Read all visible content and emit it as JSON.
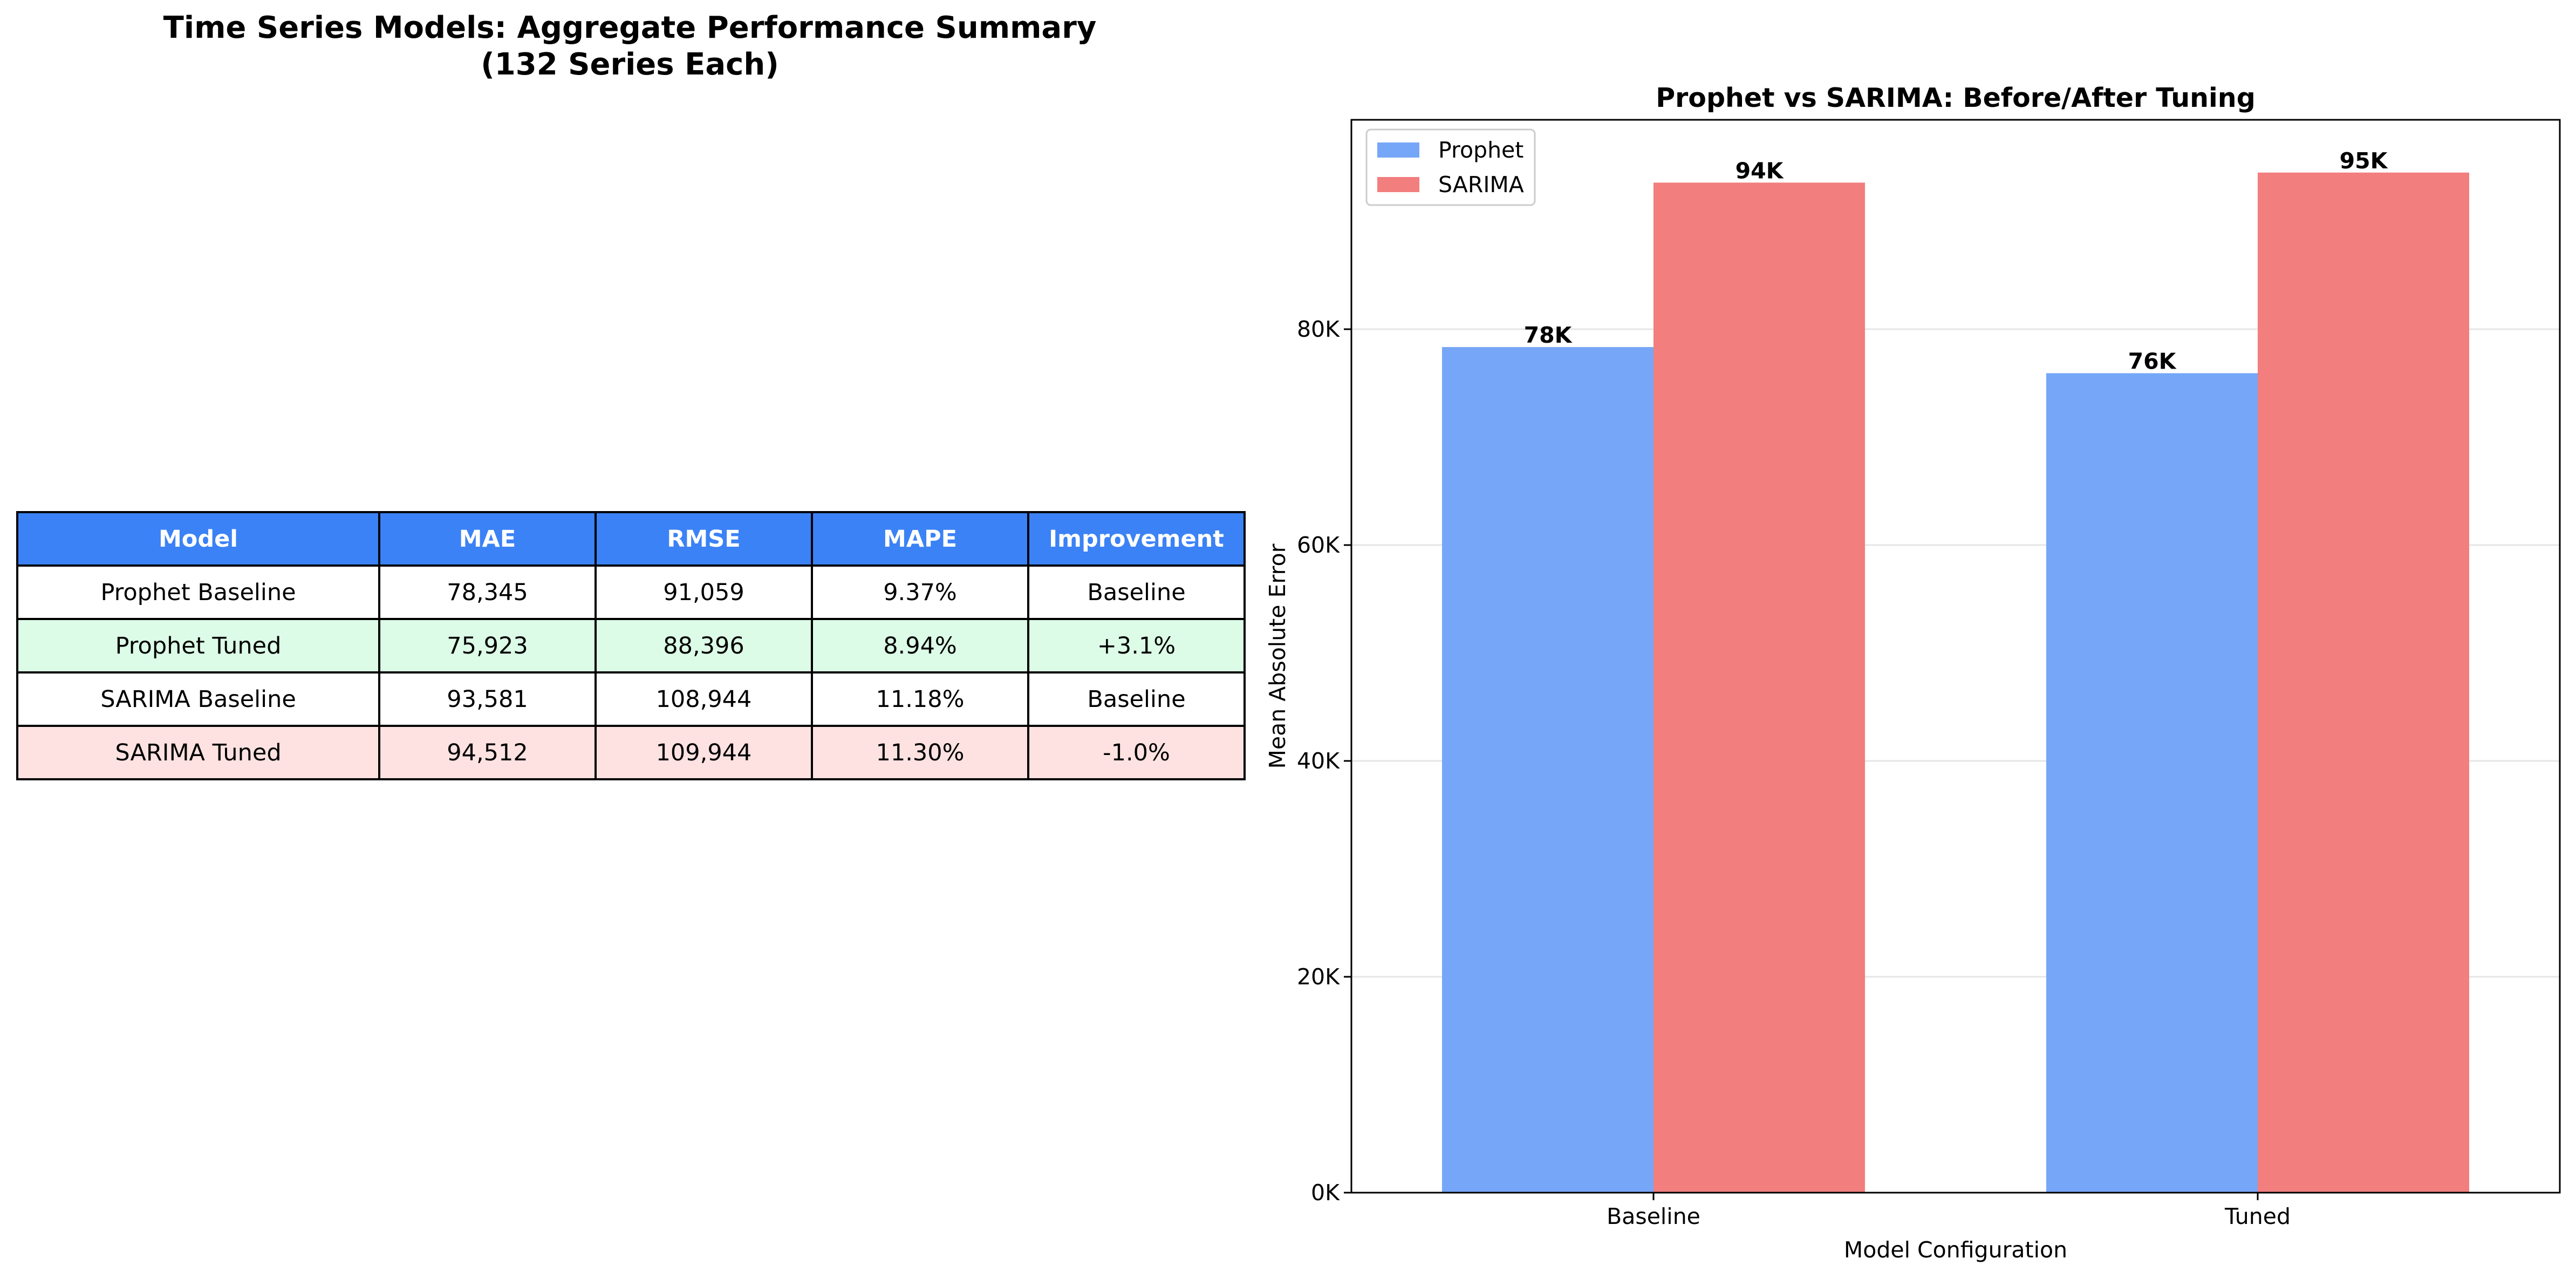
{
  "table_panel": {
    "title_line1": "Time Series Models: Aggregate Performance Summary",
    "title_line2": "(132 Series Each)",
    "headers": [
      "Model",
      "MAE",
      "RMSE",
      "MAPE",
      "Improvement"
    ],
    "header_color": "#3b82f6",
    "rows": [
      {
        "cells": [
          "Prophet Baseline",
          "78,345",
          "91,059",
          "9.37%",
          "Baseline"
        ],
        "color": "#ffffff"
      },
      {
        "cells": [
          "Prophet Tuned",
          "75,923",
          "88,396",
          "8.94%",
          "+3.1%"
        ],
        "color": "#dcfce7"
      },
      {
        "cells": [
          "SARIMA Baseline",
          "93,581",
          "108,944",
          "11.18%",
          "Baseline"
        ],
        "color": "#ffffff"
      },
      {
        "cells": [
          "SARIMA Tuned",
          "94,512",
          "109,944",
          "11.30%",
          "-1.0%"
        ],
        "color": "#fee2e2"
      }
    ]
  },
  "chart_data": {
    "type": "bar",
    "title": "Prophet vs SARIMA: Before/After Tuning",
    "xlabel": "Model Configuration",
    "ylabel": "Mean Absolute Error",
    "categories": [
      "Baseline",
      "Tuned"
    ],
    "series": [
      {
        "name": "Prophet",
        "values": [
          78345,
          75923
        ],
        "labels": [
          "78K",
          "76K"
        ],
        "color": "#76a6f7"
      },
      {
        "name": "SARIMA",
        "values": [
          93581,
          94512
        ],
        "labels": [
          "94K",
          "95K"
        ],
        "color": "#f27e7e"
      }
    ],
    "ylim": [
      0,
      99400
    ],
    "yticks": [
      0,
      20000,
      40000,
      60000,
      80000
    ],
    "ytick_labels": [
      "0K",
      "20K",
      "40K",
      "60K",
      "80K"
    ],
    "grid": "y",
    "legend_position": "top-left"
  }
}
